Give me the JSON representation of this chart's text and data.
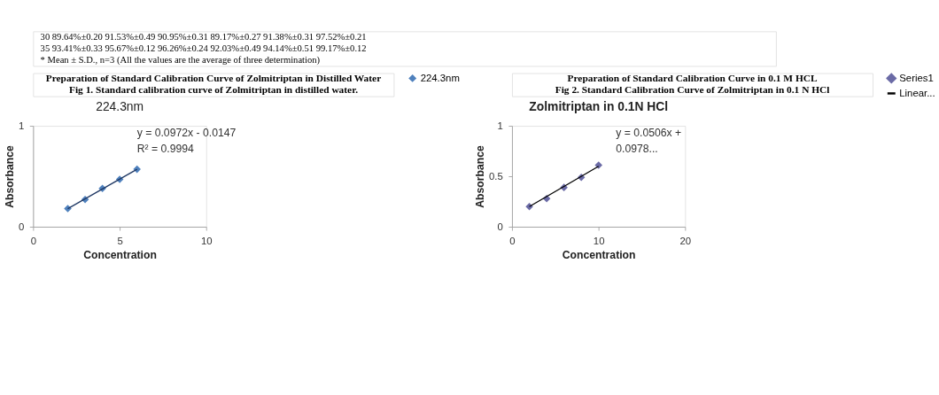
{
  "chart_data": [
    {
      "type": "other",
      "annotations": [
        "30     89.64%±0.20     91.53%±0.49     90.95%±0.31     89.17%±0.27     91.38%±0.31     97.52%±0.21",
        "35     93.41%±0.33     95.67%±0.12     96.26%±0.24     92.03%±0.49     94.14%±0.51     99.17%±0.12",
        "* Mean ± S.D., n=3 (All the values are the average of three determination)"
      ]
    },
    {
      "type": "scatter",
      "title": "Preparation of Standard Calibration Curve of Zolmitriptan in Distilled Water",
      "subtitle": "Fig 1. Standard calibration curve of Zolmitriptan in distilled water.",
      "xlabel": "Concentration",
      "ylabel": "Absorbance",
      "xlim": [
        0,
        10
      ],
      "xticks": [
        0,
        5,
        10
      ],
      "ylim": [
        0,
        1
      ],
      "yticks": [
        0,
        1
      ],
      "grid": false,
      "legend": "right",
      "annotations": [
        "224.3nm",
        "y = 0.0972x - 0.0147",
        "R² = 0.9994"
      ],
      "series": [
        {
          "name": "224.3nm",
          "type": "scatter",
          "marker": "diamond",
          "color": "#4f81bd",
          "x": [
            2,
            3,
            4,
            5,
            6
          ],
          "values": [
            0.18,
            0.27,
            0.38,
            0.47,
            0.57
          ]
        },
        {
          "type": "line",
          "color": "#1f3864",
          "x": [
            2,
            6
          ],
          "values": [
            0.18,
            0.57
          ]
        }
      ]
    },
    {
      "type": "scatter",
      "title": "Preparation of Standard Calibration Curve in 0.1 M HCL",
      "subtitle": "Fig 2.  Standard Calibration Curve of Zolmitriptan in 0.1 N HCl",
      "xlabel": "Concentration",
      "ylabel": "Absorbance",
      "xlim": [
        0,
        20
      ],
      "xticks": [
        0,
        10,
        20
      ],
      "ylim": [
        0,
        1
      ],
      "yticks": [
        0,
        0.5,
        1
      ],
      "grid": false,
      "legend": "right",
      "annotations": [
        "Zolmitriptan in 0.1N HCl",
        "y = 0.0506x +",
        "0.0978..."
      ],
      "series": [
        {
          "name": "Series1",
          "type": "scatter",
          "marker": "diamond",
          "color": "#6b6ba6",
          "x": [
            2,
            4,
            6,
            8,
            10
          ],
          "values": [
            0.2,
            0.28,
            0.39,
            0.49,
            0.61
          ]
        },
        {
          "name": "Linear...",
          "type": "line",
          "color": "#000000",
          "x": [
            2,
            10
          ],
          "values": [
            0.2,
            0.6
          ]
        }
      ]
    }
  ]
}
